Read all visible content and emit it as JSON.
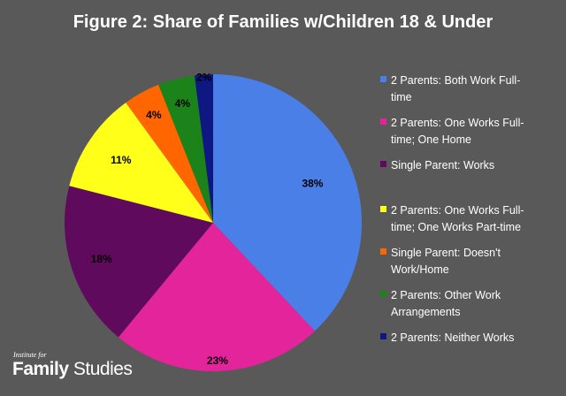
{
  "chart_data": {
    "type": "pie",
    "title": "Figure 2: Share of Families w/Children 18 & Under",
    "categories": [
      "2 Parents: Both Work Full-time",
      "2 Parents: One Works Full-time; One Home",
      "Single Parent: Works",
      "2 Parents: One Works Full-time; One Works Part-time",
      "Single Parent: Doesn't Work/Home",
      "2 Parents: Other Work Arrangements",
      "2 Parents: Neither Works"
    ],
    "legend_lines": [
      [
        "2 Parents: Both Work Full-",
        "time"
      ],
      [
        "2 Parents: One Works Full-",
        "time; One Home"
      ],
      [
        "Single Parent: Works"
      ],
      [
        "2 Parents: One Works Full-",
        "time; One Works Part-time"
      ],
      [
        "Single Parent: Doesn't",
        "Work/Home"
      ],
      [
        "2 Parents: Other Work",
        "Arrangements"
      ],
      [
        "2 Parents: Neither Works"
      ]
    ],
    "values": [
      38,
      23,
      18,
      11,
      4,
      4,
      2
    ],
    "labels": [
      "38%",
      "23%",
      "18%",
      "11%",
      "4%",
      "4%",
      "2%"
    ],
    "colors": [
      "#4A7FE8",
      "#E3249A",
      "#5F0A5C",
      "#FFFF19",
      "#FF6600",
      "#1C821A",
      "#0F1782"
    ],
    "legend_position": "right"
  },
  "logo": {
    "top": "Institute for",
    "main_bold": "Family",
    "main_regular": " Studies"
  }
}
